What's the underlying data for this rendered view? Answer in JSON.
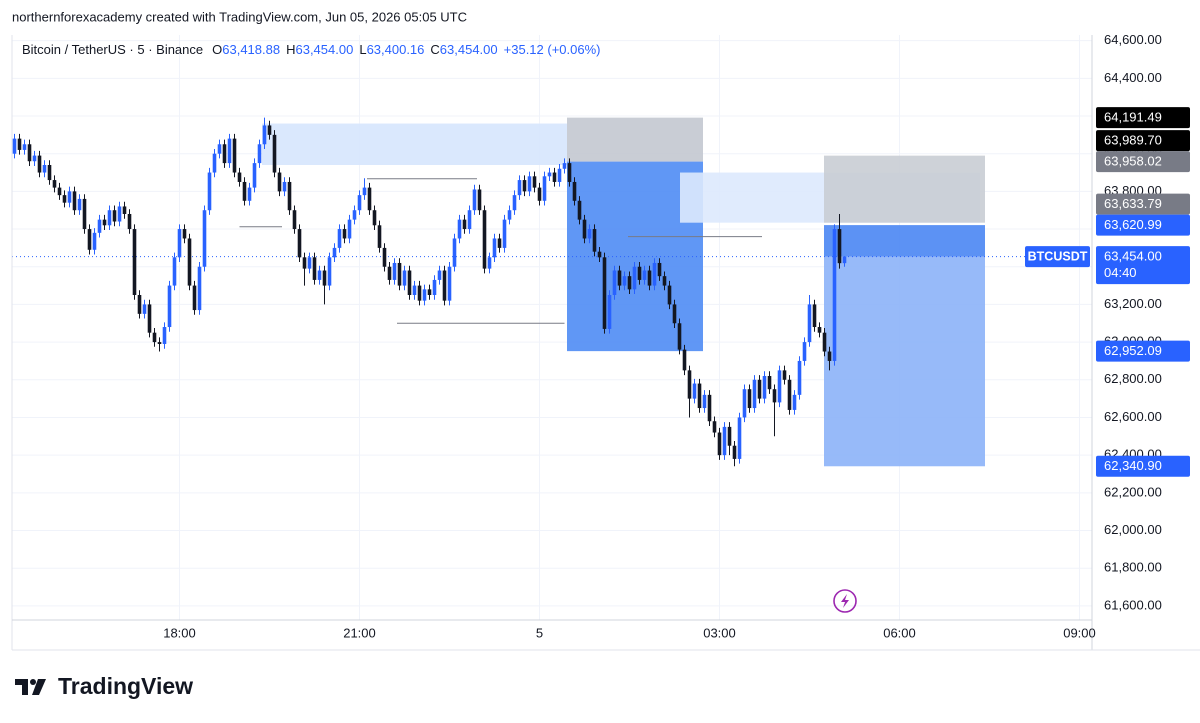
{
  "header": {
    "attribution": "northernforexacademy created with TradingView.com, Jun 05, 2026 05:05 UTC"
  },
  "chart_data": {
    "type": "candlestick",
    "symbol": "Bitcoin / TetherUS · 5 · Binance",
    "legend": [
      {
        "key": "O",
        "value": "63,418.88"
      },
      {
        "key": "H",
        "value": "63,454.00"
      },
      {
        "key": "L",
        "value": "63,400.16"
      },
      {
        "key": "C",
        "value": "63,454.00"
      }
    ],
    "change": "+35.12 (+0.06%)",
    "up_color": "#2962ff",
    "down_color": "#131722",
    "xlim": [
      -0.5,
      215.5
    ],
    "xticks": [
      {
        "value": 33,
        "label": "18:00"
      },
      {
        "value": 69,
        "label": "21:00"
      },
      {
        "value": 105,
        "label": "5"
      },
      {
        "value": 141,
        "label": "03:00"
      },
      {
        "value": 177,
        "label": "06:00"
      },
      {
        "value": 213,
        "label": "09:00"
      }
    ],
    "ylim": [
      61525,
      64630
    ],
    "yticks": [
      {
        "value": 61600,
        "label": "61,600.00"
      },
      {
        "value": 61800,
        "label": "61,800.00"
      },
      {
        "value": 62000,
        "label": "62,000.00"
      },
      {
        "value": 62200,
        "label": "62,200.00"
      },
      {
        "value": 62400,
        "label": "62,400.00"
      },
      {
        "value": 62600,
        "label": "62,600.00"
      },
      {
        "value": 62800,
        "label": "62,800.00"
      },
      {
        "value": 63000,
        "label": "63,000.00"
      },
      {
        "value": 63200,
        "label": "63,200.00"
      },
      {
        "value": 63400,
        "label": "63,400.00"
      },
      {
        "value": 63600,
        "label": "63,600.00"
      },
      {
        "value": 63800,
        "label": "63,800.00"
      },
      {
        "value": 64000,
        "label": "64,000.00"
      },
      {
        "value": 64200,
        "label": "64,200.00"
      },
      {
        "value": 64400,
        "label": "64,400.00"
      },
      {
        "value": 64600,
        "label": "64,600.00"
      }
    ],
    "grid": true,
    "ohlc": [
      [
        64000,
        64105,
        63975,
        64080
      ],
      [
        64080,
        64105,
        63995,
        64020
      ],
      [
        64020,
        64075,
        63995,
        64050
      ],
      [
        64050,
        64075,
        63935,
        63960
      ],
      [
        63960,
        64015,
        63935,
        63990
      ],
      [
        63990,
        64015,
        63875,
        63900
      ],
      [
        63900,
        63965,
        63875,
        63940
      ],
      [
        63940,
        63965,
        63835,
        63860
      ],
      [
        63860,
        63885,
        63795,
        63820
      ],
      [
        63820,
        63845,
        63755,
        63780
      ],
      [
        63780,
        63805,
        63715,
        63740
      ],
      [
        63740,
        63825,
        63715,
        63800
      ],
      [
        63800,
        63825,
        63675,
        63700
      ],
      [
        63700,
        63785,
        63675,
        63760
      ],
      [
        63760,
        63785,
        63575,
        63600
      ],
      [
        63600,
        63625,
        63465,
        63490
      ],
      [
        63490,
        63605,
        63465,
        63580
      ],
      [
        63580,
        63675,
        63555,
        63650
      ],
      [
        63650,
        63675,
        63595,
        63620
      ],
      [
        63620,
        63725,
        63595,
        63700
      ],
      [
        63700,
        63725,
        63615,
        63640
      ],
      [
        63640,
        63745,
        63615,
        63720
      ],
      [
        63720,
        63745,
        63655,
        63680
      ],
      [
        63680,
        63705,
        63575,
        63600
      ],
      [
        63600,
        63625,
        63225,
        63250
      ],
      [
        63250,
        63275,
        63125,
        63150
      ],
      [
        63150,
        63225,
        63125,
        63200
      ],
      [
        63200,
        63225,
        63025,
        63050
      ],
      [
        63050,
        63075,
        62975,
        63000
      ],
      [
        63000,
        63025,
        62950,
        62990
      ],
      [
        62990,
        63105,
        62965,
        63080
      ],
      [
        63080,
        63325,
        63055,
        63300
      ],
      [
        63300,
        63475,
        63275,
        63450
      ],
      [
        63450,
        63625,
        63425,
        63600
      ],
      [
        63600,
        63625,
        63525,
        63550
      ],
      [
        63550,
        63575,
        63275,
        63300
      ],
      [
        63300,
        63325,
        63145,
        63170
      ],
      [
        63170,
        63425,
        63145,
        63400
      ],
      [
        63400,
        63725,
        63375,
        63700
      ],
      [
        63700,
        63925,
        63675,
        63900
      ],
      [
        63900,
        64025,
        63875,
        64000
      ],
      [
        64000,
        64075,
        63975,
        64050
      ],
      [
        64050,
        64075,
        63925,
        63950
      ],
      [
        63950,
        64105,
        63925,
        64080
      ],
      [
        64080,
        64105,
        63875,
        63900
      ],
      [
        63900,
        63925,
        63825,
        63850
      ],
      [
        63850,
        63875,
        63725,
        63750
      ],
      [
        63750,
        63845,
        63725,
        63820
      ],
      [
        63820,
        63975,
        63795,
        63950
      ],
      [
        63950,
        64075,
        63925,
        64050
      ],
      [
        64050,
        64191.49,
        64025,
        64150
      ],
      [
        64150,
        64175,
        64075,
        64100
      ],
      [
        64100,
        64125,
        63875,
        63900
      ],
      [
        63900,
        63925,
        63775,
        63800
      ],
      [
        63800,
        63875,
        63775,
        63850
      ],
      [
        63850,
        63875,
        63675,
        63700
      ],
      [
        63700,
        63725,
        63575,
        63600
      ],
      [
        63600,
        63625,
        63425,
        63450
      ],
      [
        63450,
        63475,
        63300,
        63390
      ],
      [
        63390,
        63475,
        63365,
        63450
      ],
      [
        63450,
        63475,
        63305,
        63330
      ],
      [
        63330,
        63405,
        63305,
        63380
      ],
      [
        63380,
        63405,
        63200,
        63300
      ],
      [
        63300,
        63475,
        63275,
        63450
      ],
      [
        63450,
        63525,
        63425,
        63500
      ],
      [
        63500,
        63625,
        63475,
        63600
      ],
      [
        63600,
        63625,
        63525,
        63550
      ],
      [
        63550,
        63675,
        63525,
        63650
      ],
      [
        63650,
        63725,
        63625,
        63700
      ],
      [
        63700,
        63805,
        63675,
        63780
      ],
      [
        63780,
        63870,
        63755,
        63820
      ],
      [
        63820,
        63845,
        63675,
        63700
      ],
      [
        63700,
        63725,
        63595,
        63620
      ],
      [
        63620,
        63645,
        63475,
        63500
      ],
      [
        63500,
        63525,
        63375,
        63400
      ],
      [
        63400,
        63425,
        63305,
        63330
      ],
      [
        63330,
        63445,
        63305,
        63420
      ],
      [
        63420,
        63445,
        63275,
        63300
      ],
      [
        63300,
        63405,
        63275,
        63380
      ],
      [
        63380,
        63405,
        63225,
        63250
      ],
      [
        63250,
        63325,
        63225,
        63300
      ],
      [
        63300,
        63325,
        63195,
        63220
      ],
      [
        63220,
        63305,
        63195,
        63280
      ],
      [
        63280,
        63305,
        63225,
        63250
      ],
      [
        63250,
        63355,
        63225,
        63330
      ],
      [
        63330,
        63405,
        63305,
        63380
      ],
      [
        63380,
        63405,
        63195,
        63220
      ],
      [
        63220,
        63425,
        63195,
        63400
      ],
      [
        63400,
        63575,
        63375,
        63550
      ],
      [
        63550,
        63675,
        63525,
        63650
      ],
      [
        63650,
        63675,
        63575,
        63600
      ],
      [
        63600,
        63725,
        63575,
        63700
      ],
      [
        63700,
        63835,
        63675,
        63810
      ],
      [
        63810,
        63835,
        63675,
        63700
      ],
      [
        63700,
        63725,
        63365,
        63390
      ],
      [
        63390,
        63475,
        63365,
        63450
      ],
      [
        63450,
        63575,
        63425,
        63550
      ],
      [
        63550,
        63575,
        63475,
        63500
      ],
      [
        63500,
        63675,
        63475,
        63650
      ],
      [
        63650,
        63725,
        63625,
        63700
      ],
      [
        63700,
        63805,
        63675,
        63780
      ],
      [
        63780,
        63885,
        63755,
        63860
      ],
      [
        63860,
        63885,
        63775,
        63800
      ],
      [
        63800,
        63905,
        63775,
        63880
      ],
      [
        63880,
        63905,
        63795,
        63820
      ],
      [
        63820,
        63845,
        63725,
        63750
      ],
      [
        63750,
        63905,
        63725,
        63880
      ],
      [
        63880,
        63925,
        63855,
        63900
      ],
      [
        63900,
        63925,
        63825,
        63850
      ],
      [
        63850,
        63945,
        63825,
        63920
      ],
      [
        63920,
        63975,
        63895,
        63950
      ],
      [
        63950,
        63975,
        63825,
        63850
      ],
      [
        63850,
        63875,
        63725,
        63750
      ],
      [
        63750,
        63775,
        63625,
        63650
      ],
      [
        63650,
        63675,
        63525,
        63550
      ],
      [
        63550,
        63625,
        63525,
        63600
      ],
      [
        63600,
        63625,
        63455,
        63480
      ],
      [
        63480,
        63505,
        63425,
        63450
      ],
      [
        63450,
        63475,
        63045,
        63070
      ],
      [
        63070,
        63275,
        63045,
        63250
      ],
      [
        63250,
        63405,
        63225,
        63380
      ],
      [
        63380,
        63405,
        63275,
        63300
      ],
      [
        63300,
        63375,
        63275,
        63350
      ],
      [
        63350,
        63375,
        63255,
        63280
      ],
      [
        63280,
        63425,
        63255,
        63400
      ],
      [
        63400,
        63425,
        63305,
        63330
      ],
      [
        63330,
        63405,
        63305,
        63380
      ],
      [
        63380,
        63405,
        63275,
        63300
      ],
      [
        63300,
        63445,
        63275,
        63420
      ],
      [
        63420,
        63445,
        63325,
        63350
      ],
      [
        63350,
        63375,
        63275,
        63300
      ],
      [
        63300,
        63325,
        63175,
        63200
      ],
      [
        63200,
        63225,
        63075,
        63100
      ],
      [
        63100,
        63125,
        62935,
        62960
      ],
      [
        62960,
        62985,
        62825,
        62850
      ],
      [
        62850,
        62875,
        62600,
        62700
      ],
      [
        62700,
        62805,
        62675,
        62780
      ],
      [
        62780,
        62805,
        62625,
        62650
      ],
      [
        62650,
        62745,
        62625,
        62720
      ],
      [
        62720,
        62745,
        62555,
        62580
      ],
      [
        62580,
        62605,
        62495,
        62520
      ],
      [
        62520,
        62545,
        62375,
        62400
      ],
      [
        62400,
        62575,
        62375,
        62550
      ],
      [
        62550,
        62575,
        62400,
        62450
      ],
      [
        62450,
        62475,
        62340.9,
        62380
      ],
      [
        62380,
        62625,
        62355,
        62600
      ],
      [
        62600,
        62775,
        62575,
        62750
      ],
      [
        62750,
        62775,
        62625,
        62650
      ],
      [
        62650,
        62825,
        62625,
        62800
      ],
      [
        62800,
        62825,
        62675,
        62700
      ],
      [
        62700,
        62845,
        62675,
        62820
      ],
      [
        62820,
        62845,
        62725,
        62750
      ],
      [
        62750,
        62775,
        62500,
        62680
      ],
      [
        62680,
        62875,
        62655,
        62850
      ],
      [
        62850,
        62875,
        62775,
        62800
      ],
      [
        62800,
        62825,
        62615,
        62640
      ],
      [
        62640,
        62745,
        62615,
        62720
      ],
      [
        62720,
        62925,
        62695,
        62900
      ],
      [
        62900,
        63025,
        62875,
        63000
      ],
      [
        63000,
        63250,
        62975,
        63200
      ],
      [
        63200,
        63225,
        63055,
        63080
      ],
      [
        63080,
        63105,
        63025,
        63050
      ],
      [
        63050,
        63075,
        62925,
        62950
      ],
      [
        62950,
        62975,
        62850,
        62900
      ],
      [
        62900,
        63625,
        62875,
        63600
      ],
      [
        63600,
        63680,
        63390,
        63418.88
      ],
      [
        63418.88,
        63454,
        63400.16,
        63454
      ]
    ],
    "zones": [
      {
        "x": [
          49.5,
          110.5
        ],
        "top": 64160,
        "bottom": 63940,
        "color": "#d6e5fd"
      },
      {
        "x": [
          110.5,
          137.7
        ],
        "top": 64191.49,
        "bottom": 63958.02,
        "color": "#c3c8d0"
      },
      {
        "x": [
          110.5,
          137.7
        ],
        "top": 63958.02,
        "bottom": 62952.09,
        "color": "#4f8cf4"
      },
      {
        "x": [
          133.1,
          193.1
        ],
        "top": 63900,
        "bottom": 63633.79,
        "color": "#dde9fd"
      },
      {
        "x": [
          161.9,
          194.1
        ],
        "top": 63989.7,
        "bottom": 63633.79,
        "color": "#c9cdd4"
      },
      {
        "x": [
          161.9,
          194.1
        ],
        "top": 63620.99,
        "bottom": 63454,
        "color": "#4a86f3"
      },
      {
        "x": [
          161.9,
          194.1
        ],
        "top": 63454,
        "bottom": 62340.9,
        "color": "#8cb3f8"
      }
    ],
    "lines": [
      {
        "x": [
          70.5,
          92.5
        ],
        "price": 63867
      },
      {
        "x": [
          45,
          53.5
        ],
        "price": 63612
      },
      {
        "x": [
          76.5,
          110
        ],
        "price": 63100
      },
      {
        "x": [
          122.7,
          149.5
        ],
        "price": 63560
      }
    ],
    "price_labels": [
      {
        "value": 64191.49,
        "label": "64,191.49",
        "color": "#000000",
        "text_color": "#ffffff"
      },
      {
        "value": 63989.7,
        "label": "63,989.70",
        "color": "#000000",
        "text_color": "#ffffff"
      },
      {
        "value": 63958.02,
        "label": "63,958.02",
        "color": "#787b86",
        "text_color": "#ffffff"
      },
      {
        "value": 63633.79,
        "label": "63,633.79",
        "color": "#787b86",
        "text_color": "#ffffff"
      },
      {
        "value": 63620.99,
        "label": "63,620.99",
        "color": "#2962ff",
        "text_color": "#ffffff"
      },
      {
        "value": 63454,
        "label": "63,454.00",
        "color": "#2962ff",
        "text_color": "#ffffff",
        "tag": "BTCUSDT",
        "countdown": "04:40"
      },
      {
        "value": 62952.09,
        "label": "62,952.09",
        "color": "#2962ff",
        "text_color": "#ffffff"
      },
      {
        "value": 62340.9,
        "label": "62,340.90",
        "color": "#2962ff",
        "text_color": "#ffffff"
      }
    ]
  },
  "footer": {
    "logo": "TradingView"
  }
}
